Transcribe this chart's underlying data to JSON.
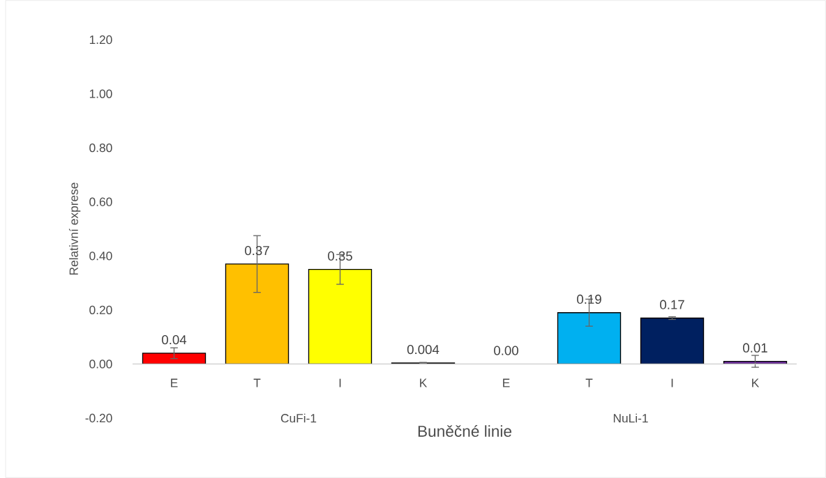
{
  "chart_data": {
    "type": "bar",
    "xlabel": "Buněčné linie",
    "ylabel": "Relativní exprese",
    "categories": [
      "E",
      "T",
      "I",
      "K",
      "E",
      "T",
      "I",
      "K"
    ],
    "values": [
      0.04,
      0.37,
      0.35,
      0.004,
      0.0,
      0.19,
      0.17,
      0.01
    ],
    "errors": [
      0.02,
      0.105,
      0.055,
      0.002,
      null,
      0.05,
      0.005,
      0.022
    ],
    "value_labels": [
      "0.04",
      "0.37",
      "0.35",
      "0.004",
      "0.00",
      "0.19",
      "0.17",
      "0.01"
    ],
    "colors": [
      "#ff0000",
      "#ffc000",
      "#ffff00",
      "#000000",
      "#ffffff",
      "#00b0f0",
      "#002060",
      "#7030a0"
    ],
    "annotations": [
      "CuFi-1",
      "NuLi-1"
    ],
    "ylim": [
      -0.2,
      1.2
    ],
    "yticks": [
      {
        "value": -0.2,
        "label": "-0.20"
      },
      {
        "value": 0,
        "label": "0.00"
      },
      {
        "value": 0.2,
        "label": "0.20"
      },
      {
        "value": 0.4,
        "label": "0.40"
      },
      {
        "value": 0.6,
        "label": "0.60"
      },
      {
        "value": 0.8,
        "label": "0.80"
      },
      {
        "value": 1.0,
        "label": "1.00"
      },
      {
        "value": 1.2,
        "label": "1.20"
      }
    ],
    "grid": false
  }
}
